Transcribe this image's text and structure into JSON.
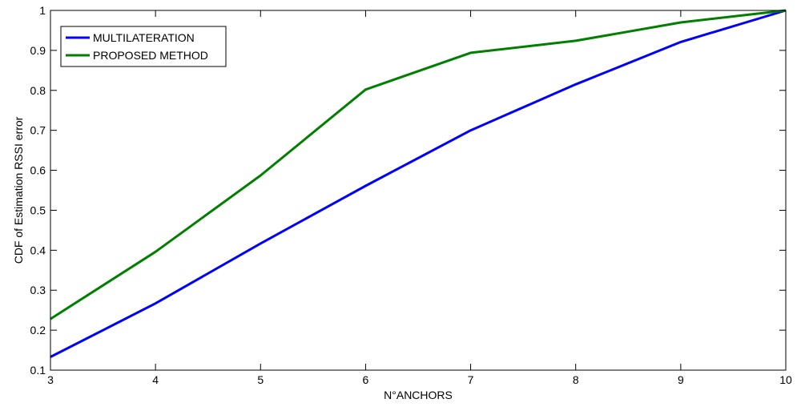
{
  "chart_data": {
    "type": "line",
    "title": "",
    "xlabel": "N°ANCHORS",
    "ylabel": "CDF of Estimation RSSI error",
    "xlim": [
      3,
      10
    ],
    "ylim": [
      0.1,
      1
    ],
    "x": [
      3,
      4,
      5,
      6,
      7,
      8,
      9,
      10
    ],
    "xticks": [
      "3",
      "4",
      "5",
      "6",
      "7",
      "8",
      "9",
      "10"
    ],
    "yticks": [
      "0.1",
      "0.2",
      "0.3",
      "0.4",
      "0.5",
      "0.6",
      "0.7",
      "0.8",
      "0.9",
      "1"
    ],
    "grid": false,
    "legend_position": "top-left",
    "series": [
      {
        "name": "MULTILATERATION",
        "color": "#0000ff",
        "values": [
          0.133,
          0.267,
          0.417,
          0.561,
          0.7,
          0.815,
          0.921,
          1.0
        ]
      },
      {
        "name": "PROPOSED METHOD",
        "color": "#007f00",
        "values": [
          0.228,
          0.396,
          0.587,
          0.802,
          0.894,
          0.924,
          0.97,
          1.0
        ]
      }
    ]
  }
}
